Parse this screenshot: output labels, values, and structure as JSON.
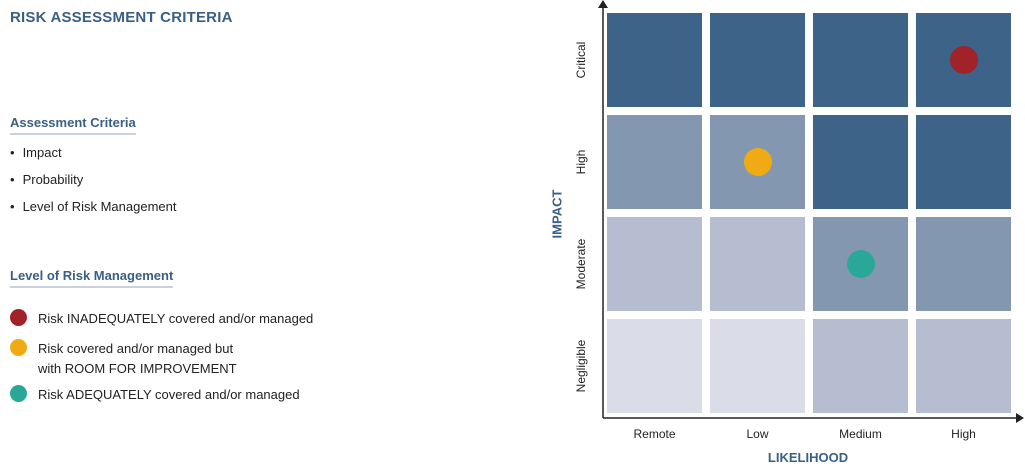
{
  "page": {
    "title": "RISK ASSESSMENT CRITERIA"
  },
  "assessment_criteria": {
    "heading": "Assessment Criteria",
    "items": [
      "Impact",
      "Probability",
      "Level of Risk Management"
    ]
  },
  "risk_management": {
    "heading": "Level of Risk Management",
    "items": [
      {
        "label": "Risk INADEQUATELY covered and/or managed",
        "color": "#a0232a"
      },
      {
        "label": "Risk covered and/or managed but\nwith ROOM FOR IMPROVEMENT",
        "color": "#f0ab14"
      },
      {
        "label": "Risk ADEQUATELY covered and/or managed",
        "color": "#2aa897"
      }
    ]
  },
  "matrix": {
    "x_axis_title": "LIKELIHOOD",
    "y_axis_title": "IMPACT",
    "columns": [
      "Remote",
      "Low",
      "Medium",
      "High"
    ],
    "rows": [
      "Critical",
      "High",
      "Moderate",
      "Negligible"
    ],
    "cell_colors": [
      [
        "#3d6488",
        "#3d6488",
        "#3d6488",
        "#3d6488"
      ],
      [
        "#8497b0",
        "#8497b0",
        "#3d6488",
        "#3d6488"
      ],
      [
        "#b6bdd0",
        "#b6bdd0",
        "#8497b0",
        "#8497b0"
      ],
      [
        "#dadde8",
        "#dadde8",
        "#b6bdd0",
        "#b6bdd0"
      ]
    ],
    "markers": [
      {
        "row": "Critical",
        "column": "High",
        "level": "Risk INADEQUATELY covered and/or managed",
        "color": "#a0232a"
      },
      {
        "row": "High",
        "column": "Low",
        "level": "Risk covered and/or managed but with ROOM FOR IMPROVEMENT",
        "color": "#f0ab14"
      },
      {
        "row": "Moderate",
        "column": "Medium",
        "level": "Risk ADEQUATELY covered and/or managed",
        "color": "#2aa897"
      }
    ]
  }
}
